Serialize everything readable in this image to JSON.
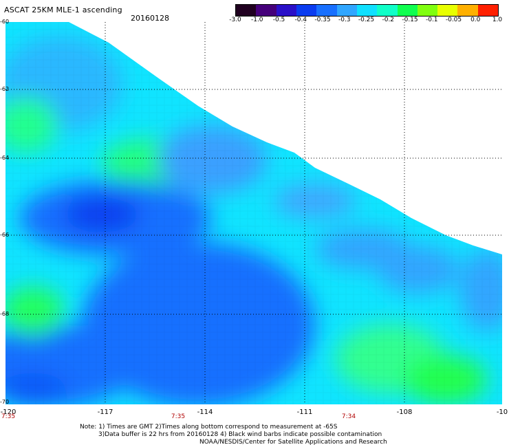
{
  "header": {
    "title": "ASCAT 25KM MLE-1 ascending",
    "date": "20160128"
  },
  "colorbar": {
    "labels": [
      "-3.0",
      "-1.0",
      "-0.5",
      "-0.4",
      "-0.35",
      "-0.3",
      "-0.25",
      "-0.2",
      "-0.15",
      "-0.1",
      "-0.05",
      "0.0",
      "1.0"
    ],
    "colors": [
      "#200020",
      "#45007a",
      "#2a10c8",
      "#0a3cf0",
      "#1870ff",
      "#30a6ff",
      "#10e0ff",
      "#10ffc8",
      "#10ff50",
      "#80ff10",
      "#e8ff00",
      "#ffb000",
      "#ff2000"
    ]
  },
  "axes": {
    "lat_labels": [
      "-60",
      "-62",
      "-64",
      "-66",
      "-68",
      "-70"
    ],
    "lon_labels": [
      "-120",
      "-117",
      "-114",
      "-111",
      "-108",
      "-10"
    ],
    "time_labels": [
      "7:35",
      "7:35",
      "7:34"
    ]
  },
  "notes": {
    "line1": "Note: 1) Times are GMT 2)Times along bottom correspond to measurement at -65S",
    "line2": "3)Data buffer is 22 hrs from 20160128 4) Black wind barbs indicate possible contamination",
    "line3": "NOAA/NESDIS/Center for Satellite Applications and Research"
  }
}
